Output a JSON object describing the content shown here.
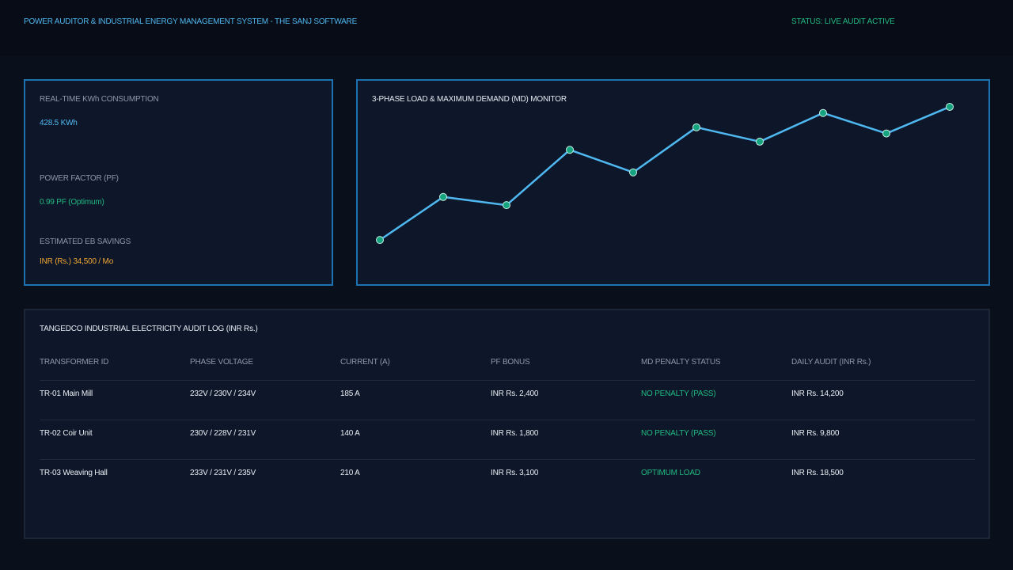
{
  "header": {
    "title": "POWER AUDITOR & INDUSTRIAL ENERGY MANAGEMENT SYSTEM - THE SANJ SOFTWARE",
    "status": "STATUS: LIVE AUDIT ACTIVE"
  },
  "kpis": {
    "consumption": {
      "label": "REAL-TIME KWh CONSUMPTION",
      "value": "428.5 KWh"
    },
    "power_factor": {
      "label": "POWER FACTOR (PF)",
      "value": "0.99 PF (Optimum)"
    },
    "savings": {
      "label": "ESTIMATED EB SAVINGS",
      "value": "INR (Rs.) 34,500 / Mo"
    }
  },
  "chart": {
    "title": "3-PHASE LOAD & MAXIMUM DEMAND (MD) MONITOR"
  },
  "chart_data": {
    "type": "line",
    "title": "3-PHASE LOAD & MAXIMUM DEMAND (MD) MONITOR",
    "xlabel": "",
    "ylabel": "",
    "x": [
      1,
      2,
      3,
      4,
      5,
      6,
      7,
      8,
      9,
      10
    ],
    "values": [
      10,
      31,
      27,
      54,
      43,
      65,
      58,
      72,
      62,
      75
    ],
    "ylim": [
      0,
      80
    ],
    "grid": false,
    "legend": "none",
    "colors": {
      "line": "#4fb8f0",
      "marker_fill": "#16a37f",
      "marker_stroke": "#c7f0e4"
    }
  },
  "audit_log": {
    "title": "TANGEDCO INDUSTRIAL ELECTRICITY AUDIT LOG (INR Rs.)",
    "columns": [
      "TRANSFORMER ID",
      "PHASE VOLTAGE",
      "CURRENT (A)",
      "PF BONUS",
      "MD PENALTY STATUS",
      "DAILY AUDIT (INR Rs.)"
    ],
    "rows": [
      {
        "id": "TR-01 Main Mill",
        "voltage": "232V / 230V / 234V",
        "current": "185 A",
        "pf_bonus": "INR Rs. 2,400",
        "md_status": "NO PENALTY (PASS)",
        "daily": "INR Rs. 14,200"
      },
      {
        "id": "TR-02 Coir Unit",
        "voltage": "230V / 228V / 231V",
        "current": "140 A",
        "pf_bonus": "INR Rs. 1,800",
        "md_status": "NO PENALTY (PASS)",
        "daily": "INR Rs. 9,800"
      },
      {
        "id": "TR-03 Weaving Hall",
        "voltage": "233V / 231V / 235V",
        "current": "210 A",
        "pf_bonus": "INR Rs. 3,100",
        "md_status": "OPTIMUM LOAD",
        "daily": "INR Rs. 18,500"
      }
    ]
  },
  "colors": {
    "accent_blue": "#4fb8f0",
    "status_green": "#22b981",
    "savings_orange": "#f0a533",
    "panel_border": "#1d72b2"
  }
}
